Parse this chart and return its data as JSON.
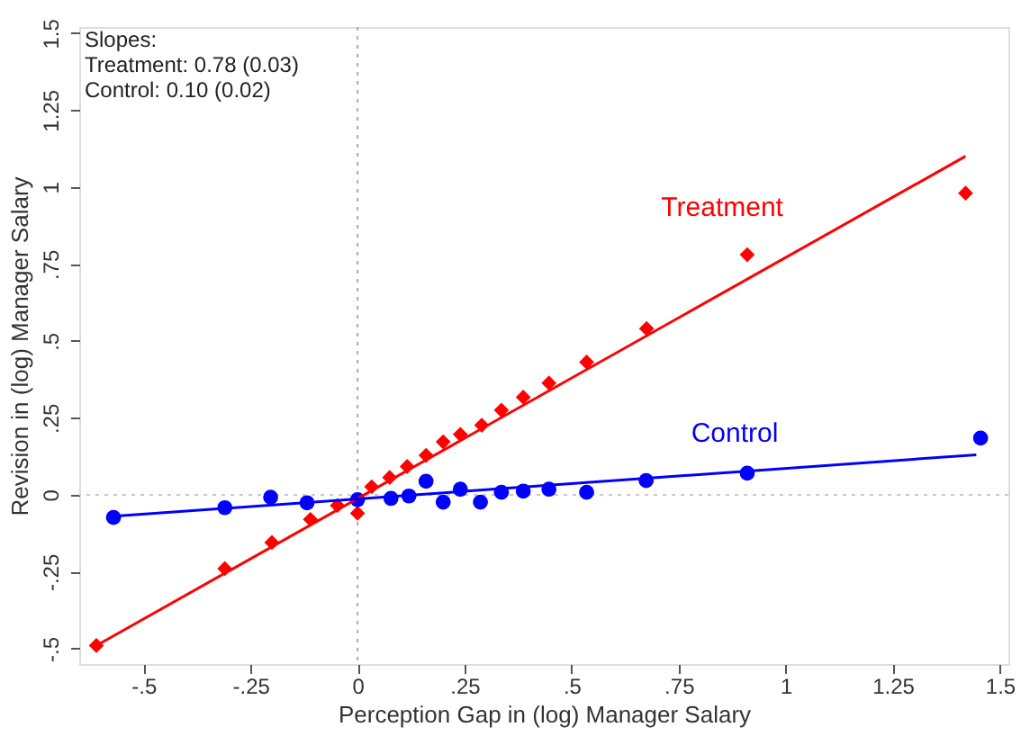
{
  "chart_data": {
    "type": "scatter",
    "xlabel": "Perception Gap in (log) Manager Salary",
    "ylabel": "Revision in (log) Manager Salary",
    "annotations": [
      "Slopes:",
      "Treatment: 0.78 (0.03)",
      "Control: 0.10 (0.02)"
    ],
    "series": [
      {
        "name": "Treatment",
        "marker": "diamond",
        "color": "#ff0000",
        "x": [
          -0.61,
          -0.31,
          -0.2,
          -0.11,
          -0.047,
          0,
          0.033,
          0.075,
          0.116,
          0.16,
          0.2,
          0.24,
          0.29,
          0.336,
          0.387,
          0.447,
          0.535,
          0.675,
          0.91,
          1.42
        ],
        "values": [
          -0.49,
          -0.24,
          -0.155,
          -0.08,
          -0.035,
          -0.06,
          0.026,
          0.056,
          0.092,
          0.128,
          0.172,
          0.196,
          0.226,
          0.275,
          0.317,
          0.363,
          0.431,
          0.54,
          0.78,
          0.98
        ]
      },
      {
        "name": "Control",
        "marker": "circle",
        "color": "#0000ff",
        "x": [
          -0.57,
          -0.31,
          -0.203,
          -0.118,
          0,
          0.078,
          0.12,
          0.16,
          0.2,
          0.24,
          0.287,
          0.336,
          0.387,
          0.447,
          0.535,
          0.674,
          0.91,
          1.455
        ],
        "values": [
          -0.074,
          -0.042,
          -0.008,
          -0.026,
          -0.016,
          -0.012,
          -0.004,
          0.044,
          -0.024,
          0.018,
          -0.024,
          0.008,
          0.012,
          0.018,
          0.008,
          0.046,
          0.07,
          0.184
        ]
      },
      {
        "type": "line",
        "color": "#ff0000",
        "x": [
          -0.61,
          1.42
        ],
        "values": [
          -0.49,
          1.1
        ]
      },
      {
        "type": "line",
        "color": "#0000ff",
        "x": [
          -0.57,
          1.445
        ],
        "values": [
          -0.07,
          0.13
        ]
      }
    ],
    "ref_lines": [
      {
        "axis": "x",
        "value": 0,
        "color": "#aaaaaa",
        "line_style": "dotted"
      },
      {
        "axis": "y",
        "value": 0,
        "color": "#c8c8c8",
        "line_style": "dotted"
      }
    ],
    "xlim": [
      -0.65,
      1.52
    ],
    "ylim": [
      -0.55,
      1.52
    ],
    "xticks": [
      {
        "value": -0.5,
        "label": "-.5"
      },
      {
        "value": -0.25,
        "label": "-.25"
      },
      0,
      {
        "value": 0.25,
        "label": ".25"
      },
      {
        "value": 0.5,
        "label": ".5"
      },
      {
        "value": 0.75,
        "label": ".75"
      },
      1,
      1.25,
      1.5
    ],
    "yticks": [
      {
        "value": -0.5,
        "label": "-.5"
      },
      {
        "value": -0.25,
        "label": "-.25"
      },
      0,
      {
        "value": 0.25,
        "label": ".25"
      },
      {
        "value": 0.5,
        "label": ".5"
      },
      {
        "value": 0.75,
        "label": ".75"
      },
      1,
      1.25,
      1.5
    ],
    "grid": false
  }
}
